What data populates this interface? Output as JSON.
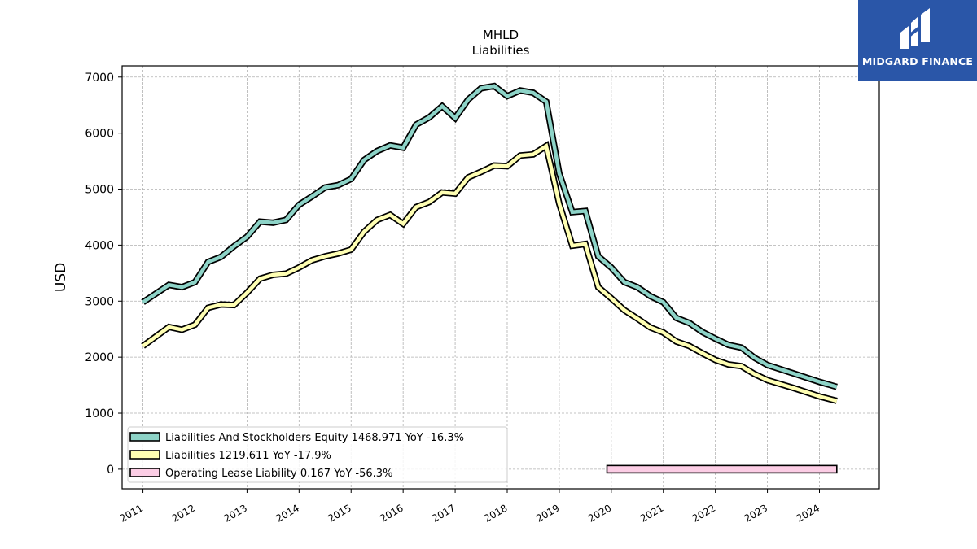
{
  "chart_data": {
    "type": "line",
    "title": "MHLD",
    "subtitle": "Liabilities",
    "ylabel": "USD",
    "xlabel": "",
    "ylim": [
      -350,
      7200
    ],
    "xlim": [
      2010.6,
      2025.15
    ],
    "grid": true,
    "legend_position": "bottom-left",
    "yticks": [
      0,
      1000,
      2000,
      3000,
      4000,
      5000,
      6000,
      7000
    ],
    "xticks": [
      "2011",
      "2012",
      "2013",
      "2014",
      "2015",
      "2016",
      "2017",
      "2018",
      "2019",
      "2020",
      "2021",
      "2022",
      "2023",
      "2024"
    ],
    "series": [
      {
        "name": "Liabilities And Stockholders Equity",
        "legend_label": "Liabilities And Stockholders Equity  1468.971 YoY -16.3%",
        "color": "#8dd3c7",
        "x": [
          "2011-01",
          "2011-07",
          "2011-10",
          "2012-01",
          "2012-04",
          "2012-07",
          "2012-10",
          "2013-01",
          "2013-04",
          "2013-07",
          "2013-10",
          "2014-01",
          "2014-04",
          "2014-07",
          "2014-10",
          "2015-01",
          "2015-04",
          "2015-07",
          "2015-10",
          "2016-01",
          "2016-04",
          "2016-07",
          "2016-10",
          "2017-01",
          "2017-04",
          "2017-07",
          "2017-10",
          "2018-01",
          "2018-04",
          "2018-07",
          "2018-10",
          "2019-01",
          "2019-04",
          "2019-07",
          "2019-10",
          "2020-01",
          "2020-04",
          "2020-07",
          "2020-10",
          "2021-01",
          "2021-04",
          "2021-07",
          "2021-10",
          "2022-01",
          "2022-04",
          "2022-07",
          "2022-10",
          "2023-01",
          "2023-07",
          "2024-01",
          "2024-05"
        ],
        "values": [
          2980,
          3290,
          3250,
          3340,
          3700,
          3790,
          3980,
          4150,
          4420,
          4400,
          4450,
          4720,
          4870,
          5030,
          5070,
          5180,
          5520,
          5680,
          5780,
          5740,
          6150,
          6280,
          6480,
          6270,
          6600,
          6800,
          6840,
          6660,
          6760,
          6720,
          6560,
          5280,
          4590,
          4610,
          3800,
          3600,
          3340,
          3250,
          3090,
          2980,
          2700,
          2610,
          2450,
          2330,
          2220,
          2170,
          1990,
          1860,
          1710,
          1560,
          1469
        ]
      },
      {
        "name": "Liabilities",
        "legend_label": "Liabilities  1219.611 YoY -17.9%",
        "color": "#ffffb3",
        "x": [
          "2011-01",
          "2011-07",
          "2011-10",
          "2012-01",
          "2012-04",
          "2012-07",
          "2012-10",
          "2013-01",
          "2013-04",
          "2013-07",
          "2013-10",
          "2014-01",
          "2014-04",
          "2014-07",
          "2014-10",
          "2015-01",
          "2015-04",
          "2015-07",
          "2015-10",
          "2016-01",
          "2016-04",
          "2016-07",
          "2016-10",
          "2017-01",
          "2017-04",
          "2017-07",
          "2017-10",
          "2018-01",
          "2018-04",
          "2018-07",
          "2018-10",
          "2019-01",
          "2019-04",
          "2019-07",
          "2019-10",
          "2020-01",
          "2020-04",
          "2020-07",
          "2020-10",
          "2021-01",
          "2021-04",
          "2021-07",
          "2021-10",
          "2022-01",
          "2022-04",
          "2022-07",
          "2022-10",
          "2023-01",
          "2023-07",
          "2024-01",
          "2024-05"
        ],
        "values": [
          2200,
          2540,
          2490,
          2580,
          2880,
          2940,
          2930,
          3150,
          3400,
          3470,
          3490,
          3600,
          3730,
          3800,
          3850,
          3920,
          4240,
          4450,
          4540,
          4380,
          4680,
          4770,
          4940,
          4920,
          5210,
          5310,
          5420,
          5410,
          5600,
          5620,
          5770,
          4740,
          3990,
          4020,
          3250,
          3050,
          2840,
          2690,
          2530,
          2440,
          2280,
          2200,
          2070,
          1950,
          1870,
          1840,
          1700,
          1590,
          1450,
          1300,
          1220
        ]
      },
      {
        "name": "Operating Lease Liability",
        "legend_label": "Operating Lease Liability  0.167 YoY -56.3%",
        "color": "#fccde5",
        "x": [
          "2019-12",
          "2024-05"
        ],
        "values": [
          0.167,
          0.167
        ]
      }
    ]
  },
  "logo": {
    "text": "MIDGARD FINANCE"
  }
}
